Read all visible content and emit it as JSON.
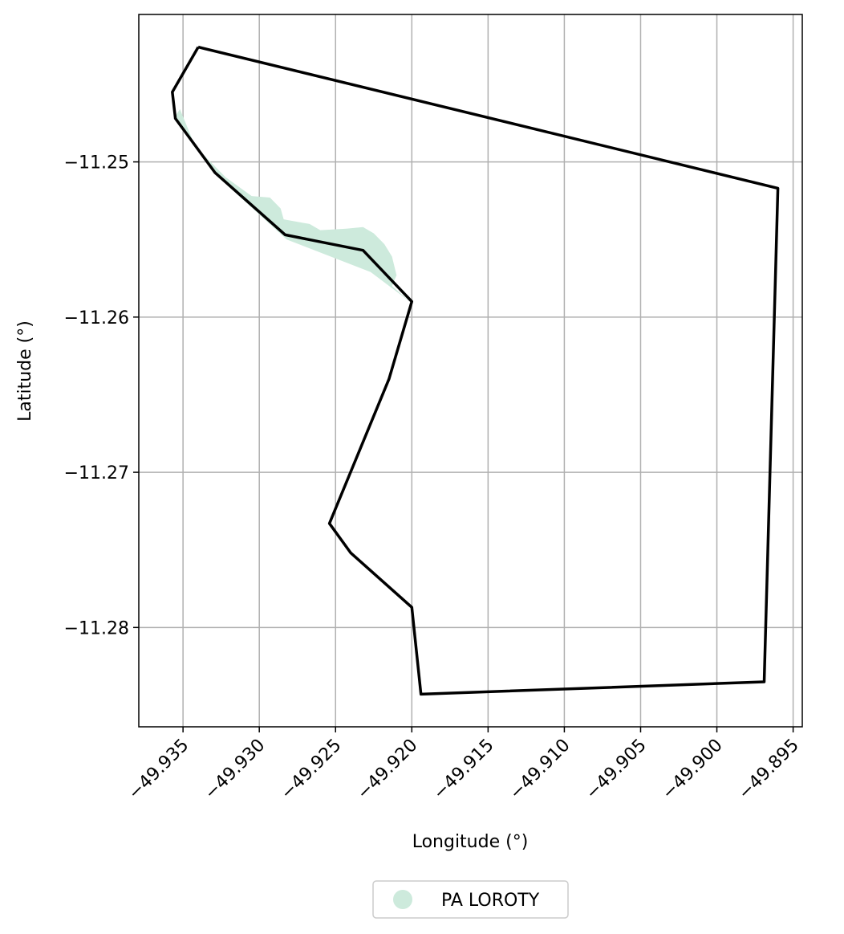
{
  "chart_data": {
    "type": "map",
    "xlabel": "Longitude (°)",
    "ylabel": "Latitude (°)",
    "xlim": [
      -49.9379,
      -49.8944
    ],
    "ylim": [
      -11.2864,
      -11.2405
    ],
    "grid": true,
    "x_ticks": [
      -49.935,
      -49.93,
      -49.925,
      -49.92,
      -49.915,
      -49.91,
      -49.905,
      -49.9,
      -49.895
    ],
    "x_tick_labels": [
      "−49.935",
      "−49.930",
      "−49.925",
      "−49.920",
      "−49.915",
      "−49.910",
      "−49.905",
      "−49.900",
      "−49.895"
    ],
    "y_ticks": [
      -11.25,
      -11.26,
      -11.27,
      -11.28
    ],
    "y_tick_labels": [
      "−11.25",
      "−11.26",
      "−11.27",
      "−11.28"
    ],
    "legend": {
      "placement": "bottom-center",
      "entries": [
        {
          "label": "PA LOROTY",
          "color": "#cdeadc",
          "marker": "circle"
        }
      ]
    },
    "layers": [
      {
        "name": "PA LOROTY",
        "kind": "polygon",
        "fill": "#cdeadc",
        "coordinates": [
          [
            -49.9352,
            -11.2466
          ],
          [
            -49.9342,
            -11.249
          ],
          [
            -49.9322,
            -11.251
          ],
          [
            -49.9305,
            -11.2522
          ],
          [
            -49.9293,
            -11.2523
          ],
          [
            -49.9286,
            -11.253
          ],
          [
            -49.9284,
            -11.2537
          ],
          [
            -49.9267,
            -11.254
          ],
          [
            -49.926,
            -11.2544
          ],
          [
            -49.9243,
            -11.2543
          ],
          [
            -49.9232,
            -11.2542
          ],
          [
            -49.9225,
            -11.2546
          ],
          [
            -49.9218,
            -11.2553
          ],
          [
            -49.9213,
            -11.2561
          ],
          [
            -49.921,
            -11.2573
          ],
          [
            -49.9213,
            -11.258
          ],
          [
            -49.92,
            -11.2591
          ],
          [
            -49.9227,
            -11.2571
          ],
          [
            -49.9282,
            -11.255
          ],
          [
            -49.9329,
            -11.2508
          ],
          [
            -49.9356,
            -11.2472
          ]
        ]
      },
      {
        "name": "boundary",
        "kind": "outline",
        "stroke": "#000000",
        "coordinates": [
          [
            -49.934,
            -11.2426
          ],
          [
            -49.9357,
            -11.2455
          ],
          [
            -49.9355,
            -11.2472
          ],
          [
            -49.9329,
            -11.2507
          ],
          [
            -49.9283,
            -11.2547
          ],
          [
            -49.9232,
            -11.2557
          ],
          [
            -49.92,
            -11.259
          ],
          [
            -49.9215,
            -11.264
          ],
          [
            -49.9254,
            -11.2733
          ],
          [
            -49.924,
            -11.2752
          ],
          [
            -49.92,
            -11.2787
          ],
          [
            -49.9194,
            -11.2843
          ],
          [
            -49.8969,
            -11.2835
          ],
          [
            -49.896,
            -11.2517
          ],
          [
            -49.934,
            -11.2426
          ]
        ]
      }
    ]
  }
}
